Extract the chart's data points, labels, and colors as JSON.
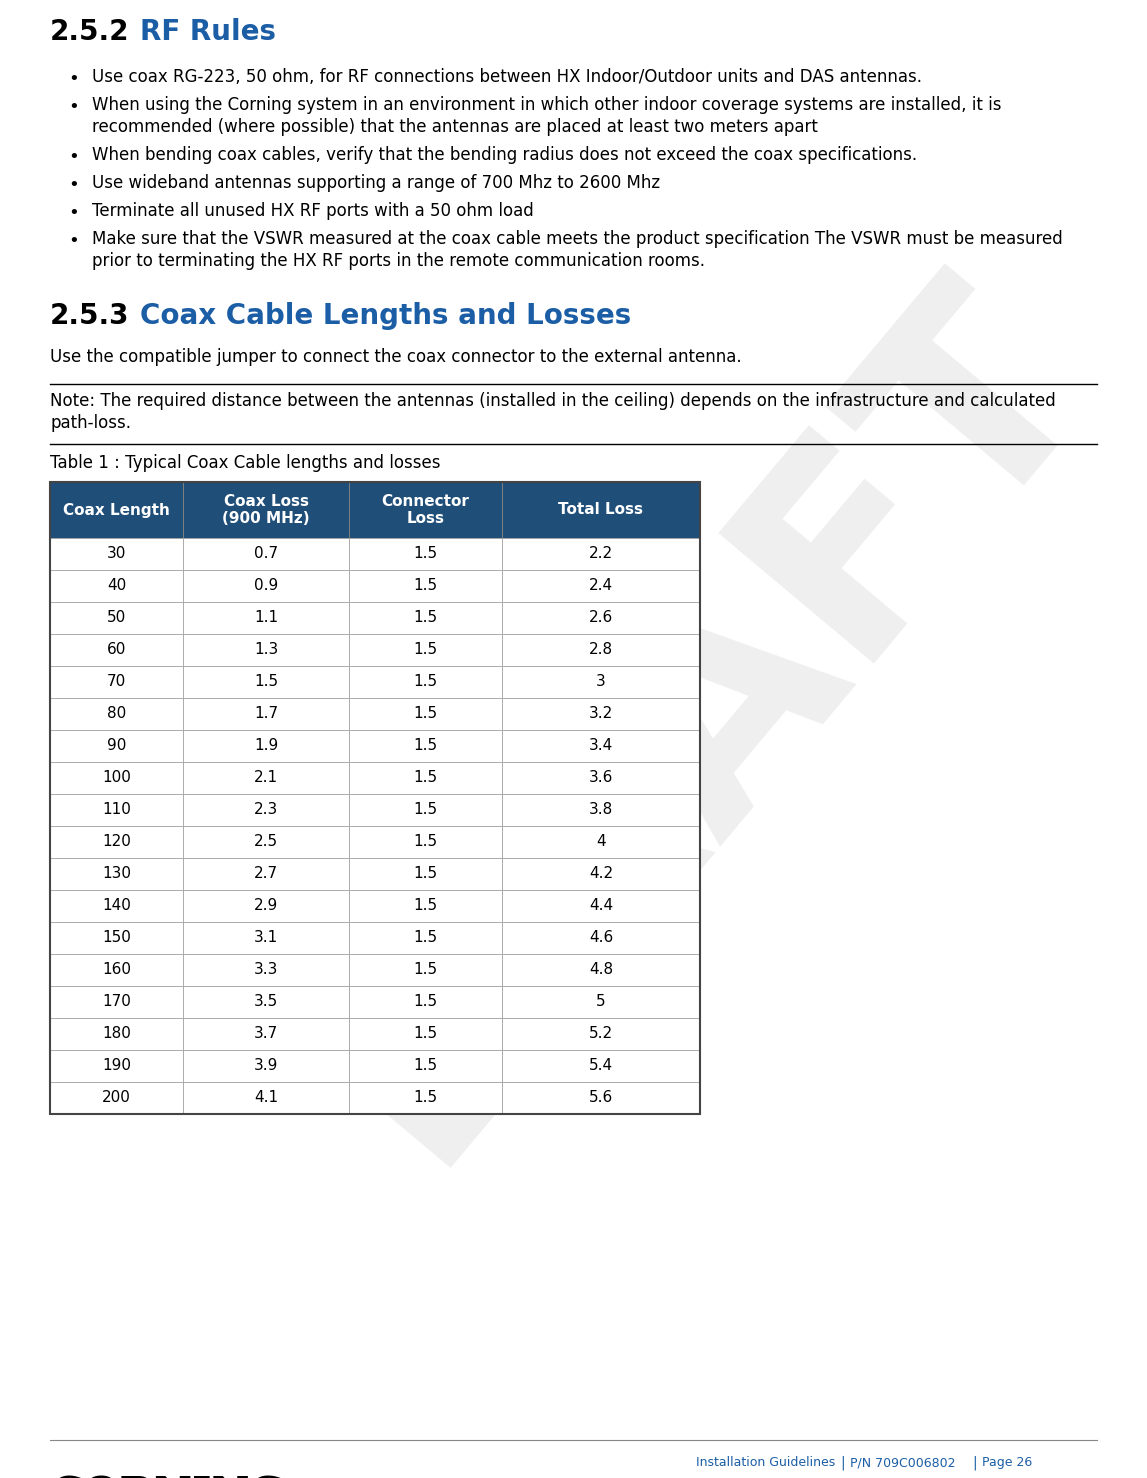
{
  "title_252": "2.5.2",
  "title_252_label": "RF Rules",
  "title_253": "2.5.3",
  "title_253_label": "Coax Cable Lengths and Losses",
  "header_color": "#1F4E79",
  "header_text_color": "#FFFFFF",
  "section_color": "#1B5EA6",
  "bullet_points": [
    "Use coax RG-223, 50 ohm, for RF connections between HX Indoor/Outdoor units and DAS antennas.",
    "When using the Corning system in an environment in which other indoor coverage systems are installed, it is\nrecommended (where possible) that the antennas are placed at least two meters apart",
    "When bending coax cables, verify that the bending radius does not exceed the coax specifications.",
    "Use wideband antennas supporting a range of 700 Mhz to 2600 Mhz",
    "Terminate all unused HX RF ports with a 50 ohm load",
    "Make sure that the VSWR measured at the coax cable meets the product specification The VSWR must be measured\nprior to terminating the HX RF ports in the remote communication rooms."
  ],
  "para_253": "Use the compatible jumper to connect the coax connector to the external antenna.",
  "note_text": "Note: The required distance between the antennas (installed in the ceiling) depends on the infrastructure and calculated\npath-loss.",
  "table_caption": "Table 1 : Typical Coax Cable lengths and losses",
  "table_headers": [
    "Coax Length",
    "Coax Loss\n(900 MHz)",
    "Connector\nLoss",
    "Total Loss"
  ],
  "table_data": [
    [
      30,
      0.7,
      1.5,
      2.2
    ],
    [
      40,
      0.9,
      1.5,
      2.4
    ],
    [
      50,
      1.1,
      1.5,
      2.6
    ],
    [
      60,
      1.3,
      1.5,
      2.8
    ],
    [
      70,
      1.5,
      1.5,
      3
    ],
    [
      80,
      1.7,
      1.5,
      3.2
    ],
    [
      90,
      1.9,
      1.5,
      3.4
    ],
    [
      100,
      2.1,
      1.5,
      3.6
    ],
    [
      110,
      2.3,
      1.5,
      3.8
    ],
    [
      120,
      2.5,
      1.5,
      4
    ],
    [
      130,
      2.7,
      1.5,
      4.2
    ],
    [
      140,
      2.9,
      1.5,
      4.4
    ],
    [
      150,
      3.1,
      1.5,
      4.6
    ],
    [
      160,
      3.3,
      1.5,
      4.8
    ],
    [
      170,
      3.5,
      1.5,
      5
    ],
    [
      180,
      3.7,
      1.5,
      5.2
    ],
    [
      190,
      3.9,
      1.5,
      5.4
    ],
    [
      200,
      4.1,
      1.5,
      5.6
    ]
  ],
  "footer_left": "CORNING",
  "footer_center": "Installation Guidelines",
  "footer_pn": "P/N 709C006802",
  "footer_page": "Page 26",
  "draft_text": "DRAFT",
  "bg_color": "#FFFFFF",
  "text_color": "#000000",
  "line_color": "#000000",
  "table_border_color": "#555555",
  "table_row_border": "#999999"
}
